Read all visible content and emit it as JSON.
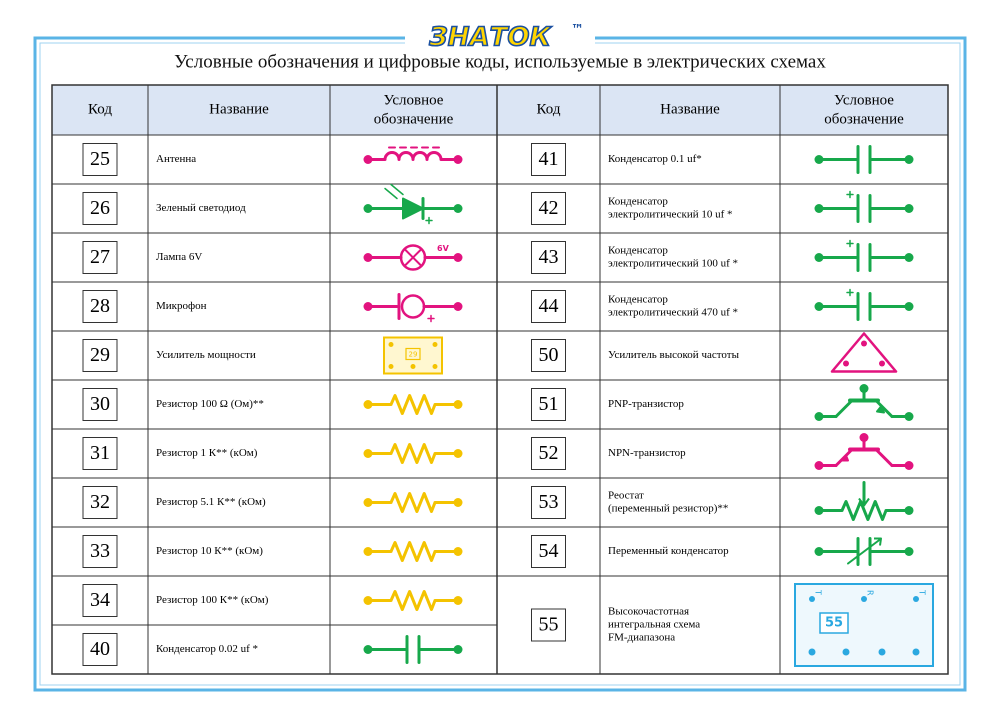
{
  "header": {
    "logo": "ЗНАТОК",
    "trademark": "™",
    "title": "Условные обозначения и цифровые коды, используемые в электрических схемах"
  },
  "table": {
    "columns": [
      "Код",
      "Название"
    ],
    "symbol_header": [
      "Условное",
      "обозначение"
    ],
    "left_rows": [
      {
        "code": 25,
        "name": [
          "Антенна"
        ]
      },
      {
        "code": 26,
        "name": [
          "Зеленый светодиод"
        ]
      },
      {
        "code": 27,
        "name": [
          "Лампа 6V"
        ]
      },
      {
        "code": 28,
        "name": [
          "Микрофон"
        ]
      },
      {
        "code": 29,
        "name": [
          "Усилитель мощности"
        ]
      },
      {
        "code": 30,
        "name": [
          "Резистор 100 Ω (Ом)**"
        ]
      },
      {
        "code": 31,
        "name": [
          "Резистор 1 К**    (кОм)"
        ]
      },
      {
        "code": 32,
        "name": [
          "Резистор 5.1 К**  (кОм)"
        ]
      },
      {
        "code": 33,
        "name": [
          "Резистор 10 К**   (кОм)"
        ]
      },
      {
        "code": 34,
        "name": [
          "Резистор 100 К** (кОм)"
        ]
      },
      {
        "code": 40,
        "name": [
          "Конденсатор 0.02 uf *"
        ]
      }
    ],
    "right_rows": [
      {
        "code": 41,
        "name": [
          "Конденсатор 0.1 uf*"
        ]
      },
      {
        "code": 42,
        "name": [
          "Конденсатор",
          "электролитический 10 uf *"
        ]
      },
      {
        "code": 43,
        "name": [
          "Конденсатор",
          "электролитический 100 uf *"
        ]
      },
      {
        "code": 44,
        "name": [
          "Конденсатор",
          "электролитический 470 uf *"
        ]
      },
      {
        "code": 50,
        "name": [
          "Усилитель высокой частоты"
        ]
      },
      {
        "code": 51,
        "name": [
          "PNP-транзистор"
        ]
      },
      {
        "code": 52,
        "name": [
          "NPN-транзистор"
        ]
      },
      {
        "code": 53,
        "name": [
          "Реостат",
          "(переменный резистор)**"
        ]
      },
      {
        "code": 54,
        "name": [
          "Переменный конденсатор"
        ]
      },
      {
        "code": 55,
        "name": [
          "Высокочастотная",
          "интегральная схема",
          "FM-диапазона"
        ]
      }
    ]
  },
  "symbols": {
    "lamp_label": "6V",
    "amp_label": "29",
    "fm_label": "55",
    "fm_pins": [
      "T",
      "R",
      "T"
    ]
  }
}
